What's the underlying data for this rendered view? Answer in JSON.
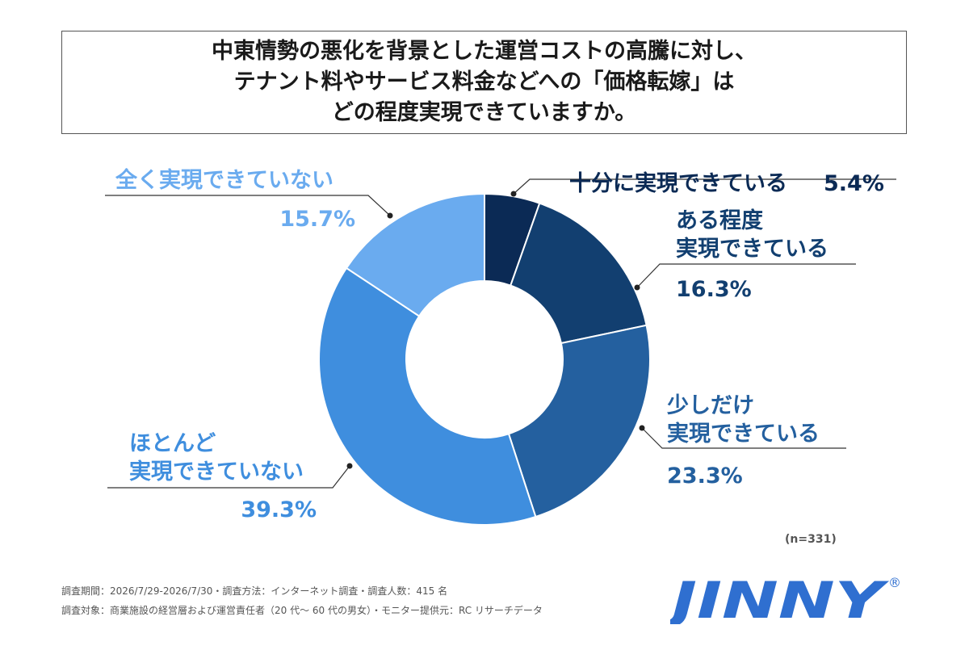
{
  "title": {
    "lines": [
      "中東情勢の悪化を背景とした運営コストの高騰に対し、",
      "テナント料やサービス料金などへの「価格転嫁」は",
      "どの程度実現できていますか。"
    ]
  },
  "chart_data": {
    "type": "pie",
    "donut": true,
    "unit": "%",
    "slices": [
      {
        "label_lines": [
          "十分に実現できている"
        ],
        "value": 5.4,
        "value_text": "5.4%",
        "color": "#0b2a55",
        "label_color": "#0b2a55"
      },
      {
        "label_lines": [
          "ある程度",
          "実現できている"
        ],
        "value": 16.3,
        "value_text": "16.3%",
        "color": "#123f70",
        "label_color": "#123f70"
      },
      {
        "label_lines": [
          "少しだけ",
          "実現できている"
        ],
        "value": 23.3,
        "value_text": "23.3%",
        "color": "#24609f",
        "label_color": "#24609f"
      },
      {
        "label_lines": [
          "ほとんど",
          "実現できていない"
        ],
        "value": 39.3,
        "value_text": "39.3%",
        "color": "#3f8ede",
        "label_color": "#3f8ede"
      },
      {
        "label_lines": [
          "全く実現できていない"
        ],
        "value": 15.7,
        "value_text": "15.7%",
        "color": "#6aabef",
        "label_color": "#6aabef"
      }
    ]
  },
  "sample_size": "(n=331)",
  "footer": {
    "line1": "調査期間：2026/7/29-2026/7/30・調査方法：インターネット調査・調査人数：415 名",
    "line2": "調査対象：商業施設の経営層および運営責任者（20 代〜 60 代の男女）・モニター提供元：RC リサーチデータ"
  },
  "logo": {
    "text": "JINNY",
    "mark": "®",
    "color": "#2f6fd0"
  }
}
